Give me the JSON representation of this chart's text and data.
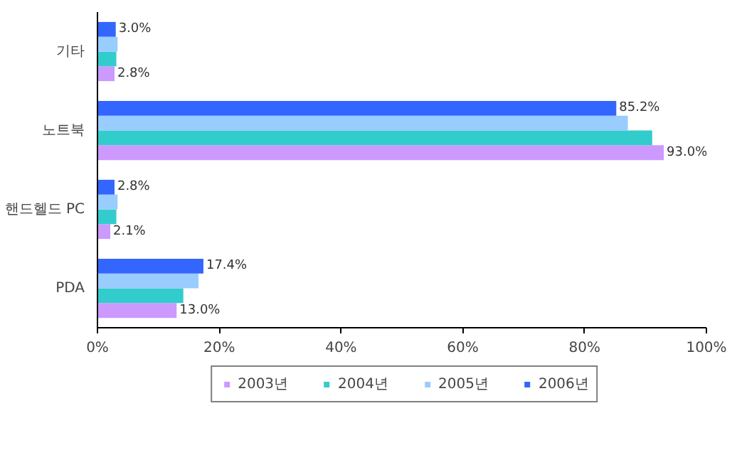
{
  "chart_data": {
    "type": "bar",
    "orientation": "horizontal",
    "categories": [
      "기타",
      "노트북",
      "핸드헬드 PC",
      "PDA"
    ],
    "xlim": [
      0,
      100
    ],
    "xticks": [
      {
        "value": 0,
        "label": "0%"
      },
      {
        "value": 20,
        "label": "20%"
      },
      {
        "value": 40,
        "label": "40%"
      },
      {
        "value": 60,
        "label": "60%"
      },
      {
        "value": 80,
        "label": "80%"
      },
      {
        "value": 100,
        "label": "100%"
      }
    ],
    "series": [
      {
        "name": "2003년",
        "color": "#cc99ff",
        "values": [
          2.8,
          93.0,
          2.1,
          13.0
        ],
        "value_labels": [
          "2.8%",
          "93.0%",
          "2.1%",
          "13.0%"
        ]
      },
      {
        "name": "2004년",
        "color": "#33cccc",
        "values": [
          3.1,
          91.1,
          3.1,
          14.1
        ]
      },
      {
        "name": "2005년",
        "color": "#99ccff",
        "values": [
          3.3,
          87.1,
          3.3,
          16.6
        ]
      },
      {
        "name": "2006년",
        "color": "#3366ff",
        "values": [
          3.0,
          85.2,
          2.8,
          17.4
        ],
        "value_labels": [
          "3.0%",
          "85.2%",
          "2.8%",
          "17.4%"
        ]
      }
    ],
    "grid": false,
    "legend": "bottom"
  }
}
